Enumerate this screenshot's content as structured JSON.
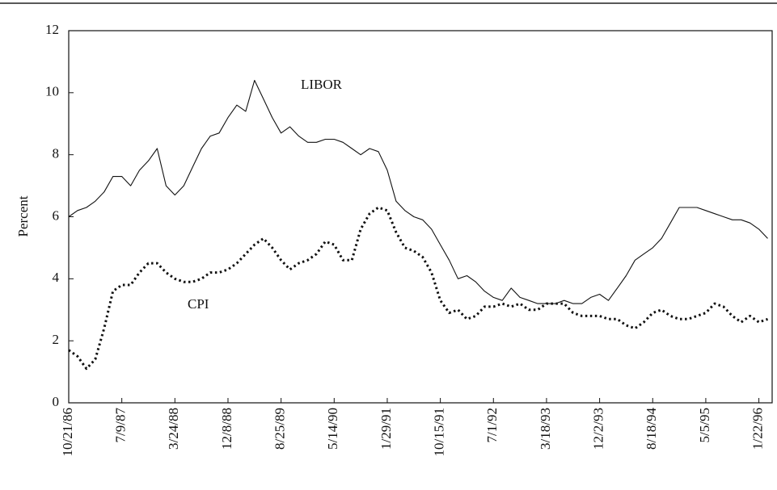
{
  "chart_data": {
    "type": "line",
    "y_label": "Percent",
    "annotations": [
      "LIBOR",
      "CPI"
    ],
    "categories": [
      "10/21/86",
      null,
      null,
      null,
      null,
      null,
      "7/9/87",
      null,
      null,
      null,
      null,
      null,
      "3/24/88",
      null,
      null,
      null,
      null,
      null,
      "12/8/88",
      null,
      null,
      null,
      null,
      null,
      "8/25/89",
      null,
      null,
      null,
      null,
      null,
      "5/14/90",
      null,
      null,
      null,
      null,
      null,
      "1/29/91",
      null,
      null,
      null,
      null,
      null,
      "10/15/91",
      null,
      null,
      null,
      null,
      null,
      "7/1/92",
      null,
      null,
      null,
      null,
      null,
      "3/18/93",
      null,
      null,
      null,
      null,
      null,
      "12/2/93",
      null,
      null,
      null,
      null,
      null,
      "8/18/94",
      null,
      null,
      null,
      null,
      null,
      "5/5/95",
      null,
      null,
      null,
      null,
      null,
      "1/22/96",
      null
    ],
    "series": [
      {
        "name": "LIBOR",
        "color": "#111111",
        "line_style": "solid",
        "values": [
          6.0,
          6.2,
          6.3,
          6.5,
          6.8,
          7.3,
          7.3,
          7.0,
          7.5,
          7.8,
          8.2,
          7.0,
          6.7,
          7.0,
          7.6,
          8.2,
          8.6,
          8.7,
          9.2,
          9.6,
          9.4,
          10.4,
          9.8,
          9.2,
          8.7,
          8.9,
          8.6,
          8.4,
          8.4,
          8.5,
          8.5,
          8.4,
          8.2,
          8.0,
          8.2,
          8.1,
          7.5,
          6.5,
          6.2,
          6.0,
          5.9,
          5.6,
          5.1,
          4.6,
          4.0,
          4.1,
          3.9,
          3.6,
          3.4,
          3.3,
          3.7,
          3.4,
          3.3,
          3.2,
          3.2,
          3.2,
          3.3,
          3.2,
          3.2,
          3.4,
          3.5,
          3.3,
          3.7,
          4.1,
          4.6,
          4.8,
          5.0,
          5.3,
          5.8,
          6.3,
          6.3,
          6.3,
          6.2,
          6.1,
          6.0,
          5.9,
          5.9,
          5.8,
          5.6,
          5.3
        ]
      },
      {
        "name": "CPI",
        "color": "#111111",
        "line_style": "dotted",
        "values": [
          1.7,
          1.5,
          1.1,
          1.4,
          2.4,
          3.6,
          3.8,
          3.8,
          4.2,
          4.5,
          4.5,
          4.2,
          4.0,
          3.9,
          3.9,
          4.0,
          4.2,
          4.2,
          4.3,
          4.5,
          4.8,
          5.1,
          5.3,
          5.0,
          4.6,
          4.3,
          4.5,
          4.6,
          4.8,
          5.2,
          5.1,
          4.6,
          4.6,
          5.6,
          6.1,
          6.3,
          6.2,
          5.5,
          5.0,
          4.9,
          4.7,
          4.2,
          3.3,
          2.9,
          3.0,
          2.7,
          2.8,
          3.1,
          3.1,
          3.2,
          3.1,
          3.2,
          3.0,
          3.0,
          3.2,
          3.2,
          3.2,
          2.9,
          2.8,
          2.8,
          2.8,
          2.7,
          2.7,
          2.5,
          2.4,
          2.6,
          2.9,
          3.0,
          2.8,
          2.7,
          2.7,
          2.8,
          2.9,
          3.2,
          3.1,
          2.8,
          2.6,
          2.8,
          2.6,
          2.7
        ]
      }
    ],
    "ylim": [
      0,
      12
    ],
    "yticks": [
      0,
      2,
      4,
      6,
      8,
      10,
      12
    ],
    "grid": false
  }
}
